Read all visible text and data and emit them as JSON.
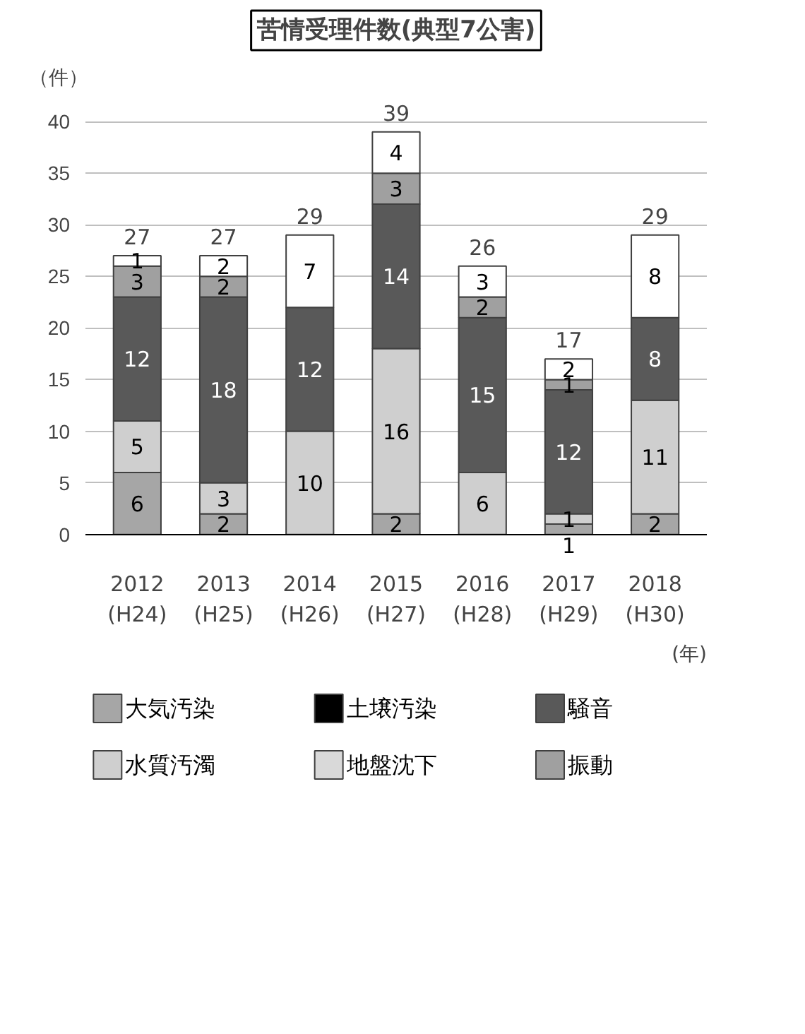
{
  "chart_data": {
    "type": "bar",
    "stacked": true,
    "title": "苦情受理件数(典型7公害)",
    "ylabel": "（件）",
    "categories": [
      "2012\n(H24)",
      "2013\n(H25)",
      "2014\n(H26)",
      "2015\n(H27)",
      "2016\n(H28)",
      "2017\n(H29)",
      "2018\n(H30)"
    ],
    "series": [
      {
        "name": "大気汚染",
        "color": "#a6a6a6",
        "values": [
          6,
          2,
          0,
          2,
          0,
          1,
          2
        ],
        "value_labels": [
          "6",
          "2",
          null,
          "2",
          null,
          "1",
          "2"
        ]
      },
      {
        "name": "水質汚濁",
        "color": "#cfcfcf",
        "values": [
          5,
          3,
          10,
          16,
          6,
          1,
          11
        ],
        "value_labels": [
          "5",
          "3",
          "10",
          "16",
          "6",
          "1",
          "11"
        ]
      },
      {
        "name": "土壌汚染",
        "color": "#000000",
        "values": [
          0,
          0,
          0,
          0,
          0,
          0,
          0
        ],
        "value_labels": [
          null,
          null,
          null,
          null,
          null,
          null,
          null
        ]
      },
      {
        "name": "地盤沈下",
        "color": "#d9d9d9",
        "values": [
          0,
          0,
          0,
          0,
          0,
          0,
          0
        ],
        "value_labels": [
          null,
          null,
          null,
          null,
          null,
          null,
          null
        ]
      },
      {
        "name": "騒音",
        "color": "#595959",
        "values": [
          12,
          18,
          12,
          14,
          15,
          12,
          8
        ],
        "value_labels": [
          "12",
          "18",
          "12",
          "14",
          "15",
          "12",
          "8"
        ]
      },
      {
        "name": "振動",
        "color": "#a0a0a0",
        "values": [
          3,
          2,
          0,
          3,
          2,
          1,
          0
        ],
        "value_labels": [
          "3",
          "2",
          null,
          "3",
          "2",
          "1",
          null
        ]
      },
      {
        "color": "#ffffff",
        "values": [
          1,
          2,
          7,
          4,
          3,
          2,
          8
        ],
        "value_labels": [
          "1",
          "2",
          "7",
          "4",
          "3",
          "2",
          "8"
        ]
      }
    ],
    "totals": [
      "27",
      "27",
      "29",
      "39",
      "26",
      "17",
      "29"
    ],
    "ylim": [
      0,
      40
    ],
    "yticks": [
      0,
      5,
      10,
      15,
      20,
      25,
      30,
      35,
      40
    ],
    "grid": "y",
    "legend": "bottom",
    "annotations": [
      "(年)"
    ]
  }
}
